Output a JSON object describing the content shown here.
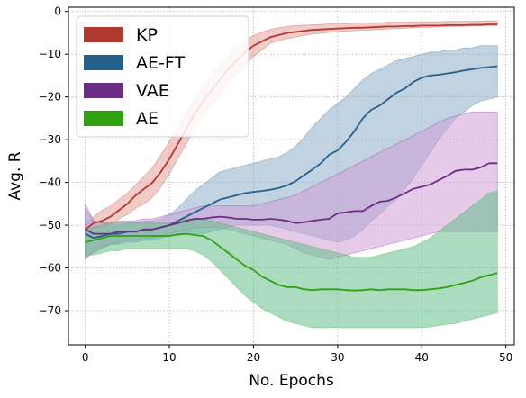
{
  "chart_data": {
    "type": "line",
    "title": "",
    "xlabel": "No. Epochs",
    "ylabel": "Avg. R",
    "xlim": [
      -2,
      51
    ],
    "ylim": [
      -78,
      1
    ],
    "xticks": [
      0,
      10,
      20,
      30,
      40,
      50
    ],
    "yticks": [
      0,
      -10,
      -20,
      -30,
      -40,
      -50,
      -60,
      -70
    ],
    "grid": true,
    "legend": "top-left",
    "x": [
      0,
      1,
      2,
      3,
      4,
      5,
      6,
      7,
      8,
      9,
      10,
      11,
      12,
      13,
      14,
      15,
      16,
      17,
      18,
      19,
      20,
      21,
      22,
      23,
      24,
      25,
      26,
      27,
      28,
      29,
      30,
      31,
      32,
      33,
      34,
      35,
      36,
      37,
      38,
      39,
      40,
      41,
      42,
      43,
      44,
      45,
      46,
      47,
      48,
      49
    ],
    "series": [
      {
        "name": "KP",
        "color": "#b0392f",
        "band_color": "#e8a09a",
        "values": [
          -51,
          -49.5,
          -49,
          -48,
          -46.5,
          -45,
          -43,
          -41.5,
          -40,
          -37.5,
          -34.5,
          -31,
          -27.5,
          -24,
          -21,
          -18.5,
          -16,
          -13.5,
          -11.5,
          -9.5,
          -8,
          -7,
          -6,
          -5.5,
          -5,
          -4.8,
          -4.5,
          -4.3,
          -4.2,
          -4.1,
          -4.0,
          -3.9,
          -3.8,
          -3.8,
          -3.7,
          -3.6,
          -3.5,
          -3.5,
          -3.4,
          -3.4,
          -3.3,
          -3.3,
          -3.3,
          -3.2,
          -3.2,
          -3.2,
          -3.1,
          -3.1,
          -3.0,
          -3.0
        ],
        "lower": [
          -52,
          -50.5,
          -50.5,
          -50,
          -48.5,
          -47.5,
          -46,
          -45,
          -43.5,
          -41,
          -38,
          -34.5,
          -31,
          -27.5,
          -24.5,
          -22,
          -19.5,
          -17,
          -14.5,
          -12.5,
          -10.5,
          -9,
          -7.5,
          -6.8,
          -6.3,
          -6,
          -5.6,
          -5.3,
          -5.1,
          -4.9,
          -4.7,
          -4.6,
          -4.5,
          -4.4,
          -4.3,
          -4.2,
          -4.1,
          -4.0,
          -3.9,
          -3.8,
          -3.7,
          -3.7,
          -3.6,
          -3.6,
          -3.5,
          -3.5,
          -3.4,
          -3.4,
          -3.3,
          -3.3
        ],
        "upper": [
          -50,
          -48,
          -46.5,
          -45.5,
          -44,
          -42.5,
          -40.5,
          -38.5,
          -36.5,
          -33.5,
          -30.5,
          -27,
          -23.5,
          -20.5,
          -17.5,
          -15,
          -12.5,
          -10.5,
          -8.5,
          -6.8,
          -5.6,
          -4.8,
          -4.2,
          -3.8,
          -3.5,
          -3.3,
          -3.2,
          -3.1,
          -3.0,
          -2.9,
          -2.8,
          -2.8,
          -2.7,
          -2.7,
          -2.6,
          -2.6,
          -2.5,
          -2.5,
          -2.5,
          -2.4,
          -2.4,
          -2.4,
          -2.4,
          -2.3,
          -2.3,
          -2.3,
          -2.3,
          -2.2,
          -2.2,
          -2.2
        ]
      },
      {
        "name": "AE-FT",
        "color": "#24618c",
        "band_color": "#8eadc7",
        "values": [
          -52,
          -53,
          -52.5,
          -52,
          -52,
          -51.5,
          -51.5,
          -51,
          -51,
          -50.5,
          -50,
          -49,
          -48,
          -47,
          -46,
          -45,
          -44,
          -43.5,
          -43,
          -42.5,
          -42.2,
          -42,
          -41.7,
          -41.3,
          -40.7,
          -39.7,
          -38.3,
          -37,
          -35.5,
          -33.5,
          -32.5,
          -30.5,
          -28,
          -25,
          -23,
          -22,
          -20.5,
          -19,
          -18,
          -16.5,
          -15.5,
          -15,
          -14.8,
          -14.5,
          -14.2,
          -13.8,
          -13.5,
          -13.2,
          -13,
          -12.8
        ],
        "lower": [
          -57.5,
          -56.5,
          -55.5,
          -54.5,
          -54.5,
          -54,
          -54,
          -53.5,
          -53.5,
          -53,
          -52.5,
          -52,
          -52,
          -52,
          -52,
          -51.5,
          -51,
          -50.5,
          -50,
          -50,
          -50,
          -50,
          -50,
          -50.5,
          -51,
          -51.5,
          -52,
          -52.5,
          -53,
          -53.5,
          -54,
          -53.5,
          -52.5,
          -51,
          -49,
          -47.5,
          -45.5,
          -44,
          -41.5,
          -39,
          -36,
          -33,
          -30,
          -27.5,
          -25,
          -23.5,
          -22,
          -21,
          -20.5,
          -20
        ],
        "upper": [
          -46,
          -49,
          -49.5,
          -50,
          -50,
          -49.5,
          -49.5,
          -49,
          -49,
          -48.5,
          -47.5,
          -46,
          -44,
          -42,
          -40.5,
          -39,
          -37.5,
          -37,
          -36.5,
          -36,
          -35.5,
          -35,
          -34.5,
          -34,
          -33,
          -31.5,
          -29.5,
          -27,
          -25,
          -23,
          -21.5,
          -20,
          -18,
          -16,
          -14.5,
          -13.5,
          -12.5,
          -11.5,
          -11,
          -10.5,
          -10,
          -9.5,
          -9.5,
          -9,
          -9,
          -8.5,
          -8.5,
          -8,
          -8,
          -8
        ]
      },
      {
        "name": "VAE",
        "color": "#6b2d86",
        "band_color": "#cf9fd8",
        "values": [
          -51,
          -52,
          -52,
          -52,
          -51.5,
          -51.5,
          -51.5,
          -51,
          -51,
          -50.5,
          -50,
          -49.5,
          -49,
          -48.5,
          -48.5,
          -48.2,
          -48,
          -48.2,
          -48.5,
          -48.5,
          -48.7,
          -48.7,
          -48.5,
          -48.7,
          -49,
          -49.5,
          -49.3,
          -49,
          -48.7,
          -48.5,
          -47.2,
          -47,
          -46.7,
          -46.7,
          -45.5,
          -44.5,
          -44.3,
          -43.5,
          -42.5,
          -41.5,
          -41,
          -40.5,
          -39.5,
          -38.5,
          -37.3,
          -37,
          -37,
          -36.5,
          -35.5,
          -35.5
        ],
        "lower": [
          -58,
          -56,
          -55,
          -54.5,
          -54,
          -53.5,
          -53.5,
          -53,
          -53,
          -52.5,
          -52,
          -51.5,
          -51,
          -50.5,
          -50.5,
          -50.5,
          -50.5,
          -51,
          -51.5,
          -52,
          -52.5,
          -53,
          -53.5,
          -54,
          -54.5,
          -55.5,
          -56.5,
          -57,
          -57.5,
          -58,
          -57.5,
          -57,
          -56.5,
          -56,
          -55.5,
          -55,
          -54.5,
          -54,
          -53.5,
          -53,
          -52.5,
          -52,
          -51.5,
          -51.5,
          -51.5,
          -51.5,
          -51.5,
          -51.5,
          -51.5,
          -51.5
        ],
        "upper": [
          -45,
          -49,
          -49.5,
          -49.5,
          -49,
          -49,
          -49,
          -48.5,
          -48.5,
          -48,
          -47.5,
          -47,
          -46.5,
          -46,
          -45.5,
          -45.5,
          -45.5,
          -45.5,
          -45.5,
          -45.5,
          -45.5,
          -45,
          -44.5,
          -44,
          -43.5,
          -43,
          -42,
          -41,
          -40,
          -39,
          -38,
          -37,
          -36,
          -35,
          -34,
          -33,
          -32,
          -31,
          -30,
          -29,
          -28,
          -27,
          -26,
          -25,
          -24.5,
          -24,
          -23.5,
          -23.5,
          -23.5,
          -23.5
        ]
      },
      {
        "name": "AE",
        "color": "#2fa111",
        "band_color": "#66c08d",
        "values": [
          -54,
          -53.5,
          -53,
          -52.5,
          -52.5,
          -52.5,
          -52.5,
          -52.5,
          -52.5,
          -52.5,
          -52.5,
          -52.2,
          -52,
          -52.3,
          -52.5,
          -53.5,
          -55,
          -56.5,
          -58,
          -59.5,
          -60.5,
          -62,
          -63,
          -64,
          -64.5,
          -64.5,
          -65,
          -65.2,
          -65,
          -65,
          -65,
          -65.2,
          -65.3,
          -65.2,
          -65,
          -65.2,
          -65,
          -65,
          -65,
          -65.2,
          -65.2,
          -65,
          -64.8,
          -64.5,
          -64,
          -63.5,
          -63,
          -62.2,
          -61.7,
          -61.2
        ],
        "lower": [
          -57,
          -57,
          -56.5,
          -56,
          -56,
          -55.5,
          -55.5,
          -55.5,
          -55.5,
          -55.5,
          -55.5,
          -55.5,
          -55.5,
          -56,
          -57,
          -58.5,
          -60.5,
          -62.5,
          -64.5,
          -66.5,
          -68,
          -69.5,
          -70.5,
          -71.5,
          -72.5,
          -73,
          -73.5,
          -74,
          -74,
          -74,
          -74,
          -74,
          -74,
          -74,
          -74,
          -74,
          -74,
          -74,
          -74,
          -74,
          -74,
          -73.8,
          -73.5,
          -73.2,
          -73,
          -72.5,
          -72,
          -71.5,
          -71,
          -70.5
        ],
        "upper": [
          -51,
          -50.5,
          -50,
          -49.5,
          -49.5,
          -49.5,
          -49.5,
          -49.5,
          -49.5,
          -49.5,
          -49.5,
          -49,
          -48.5,
          -48.5,
          -48.5,
          -49,
          -49.5,
          -50,
          -50.5,
          -51,
          -51.5,
          -52,
          -52.5,
          -53,
          -53.5,
          -54,
          -54.5,
          -55,
          -55.5,
          -56,
          -56.5,
          -57,
          -57.5,
          -57.5,
          -57.5,
          -57,
          -56.5,
          -56,
          -55.5,
          -55,
          -54,
          -53,
          -51.5,
          -50,
          -48.5,
          -47,
          -45.5,
          -44,
          -42.5,
          -42
        ]
      }
    ]
  }
}
